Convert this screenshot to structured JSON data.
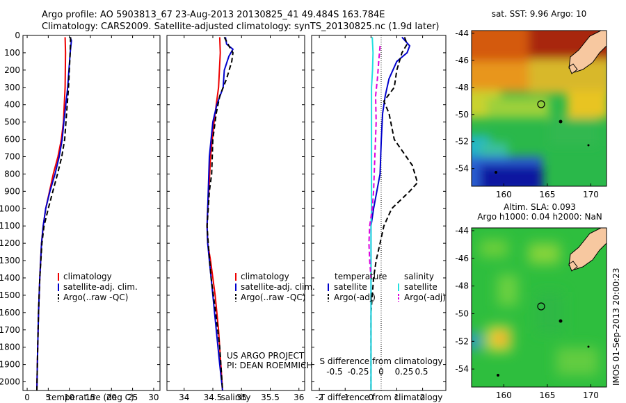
{
  "header": {
    "line1": "Argo profile: AO 5903813_67 23-Aug-2013 20130825_41 49.484S 163.784E",
    "line2": "Climatology: CARS2009. Satellite-adjusted climatology: synTS_20130825.nc (1.9d later)"
  },
  "credit": {
    "line1": "US ARGO PROJECT",
    "line2": "PI: DEAN ROEMMICH"
  },
  "footer_stamp": "IMOS 01-Sep-2013 20:00:23",
  "colors": {
    "climatology": "#ee0000",
    "satellite": "#0000cc",
    "argo": "#000000",
    "sat_diff_salinity": "#22e0e0",
    "argo_diff_salinity": "#dd00dd",
    "land": "#f7c8a0"
  },
  "chart_data": [
    {
      "type": "line",
      "name": "temperature-panel",
      "xlabel": "temperature (deg C)",
      "ylabel": "",
      "xlim": [
        -1,
        31.5
      ],
      "ylim": [
        2050,
        0
      ],
      "x_ticks": [
        0,
        5,
        10,
        15,
        20,
        25,
        30
      ],
      "y_ticks": [
        0,
        100,
        200,
        300,
        400,
        500,
        600,
        700,
        800,
        900,
        1000,
        1100,
        1200,
        1300,
        1400,
        1500,
        1600,
        1700,
        1800,
        1900,
        2000
      ],
      "legend": [
        "climatology",
        "satellite-adj. clim.",
        "Argo(..raw -QC)"
      ],
      "series": [
        {
          "name": "climatology",
          "style": "solid",
          "color": "#ee0000",
          "depth": [
            10,
            100,
            300,
            500,
            600,
            700,
            800,
            900,
            1000,
            1100,
            1200,
            1400,
            1600,
            1800,
            2050
          ],
          "value": [
            9.0,
            9.1,
            9.0,
            8.6,
            8.1,
            7.3,
            6.2,
            5.3,
            4.4,
            3.8,
            3.4,
            3.0,
            2.7,
            2.5,
            2.3
          ]
        },
        {
          "name": "satellite-adj. clim.",
          "style": "solid",
          "color": "#0000cc",
          "depth": [
            10,
            30,
            100,
            300,
            500,
            600,
            700,
            800,
            900,
            1000,
            1100,
            1200,
            1400,
            1600,
            1800,
            2050
          ],
          "value": [
            10.2,
            10.5,
            10.2,
            9.6,
            8.7,
            8.3,
            7.6,
            6.6,
            5.4,
            4.4,
            3.8,
            3.4,
            3.0,
            2.7,
            2.5,
            2.3
          ]
        },
        {
          "name": "Argo(..raw -QC)",
          "style": "dashed",
          "color": "#000000",
          "depth": [
            10,
            100,
            300,
            500,
            600,
            700,
            800,
            900,
            1000,
            1100,
            1200,
            1400,
            1600,
            1800,
            2050
          ],
          "value": [
            10.3,
            10.2,
            9.8,
            9.2,
            8.9,
            8.2,
            7.2,
            6.1,
            5.0,
            4.0,
            3.5,
            3.0,
            2.7,
            2.5,
            2.3
          ]
        }
      ]
    },
    {
      "type": "line",
      "name": "salinity-panel",
      "xlabel": "salinity",
      "ylabel": "",
      "xlim": [
        33.7,
        36.1
      ],
      "ylim": [
        2050,
        0
      ],
      "x_ticks": [
        34,
        34.5,
        35,
        35.5,
        36
      ],
      "legend": [
        "climatology",
        "satellite-adj. clim.",
        "Argo(..raw -QC)"
      ],
      "series": [
        {
          "name": "climatology",
          "style": "solid",
          "color": "#ee0000",
          "depth": [
            10,
            100,
            300,
            400,
            500,
            700,
            900,
            1000,
            1100,
            1200,
            1300,
            1500,
            1700,
            1900,
            2050
          ],
          "value": [
            34.62,
            34.63,
            34.6,
            34.56,
            34.52,
            34.46,
            34.43,
            34.41,
            34.4,
            34.41,
            34.46,
            34.54,
            34.6,
            34.64,
            34.67
          ]
        },
        {
          "name": "satellite-adj. clim.",
          "style": "solid",
          "color": "#0000cc",
          "depth": [
            10,
            50,
            80,
            120,
            200,
            300,
            400,
            500,
            700,
            900,
            1000,
            1100,
            1200,
            1300,
            1500,
            1700,
            1900,
            2050
          ],
          "value": [
            34.72,
            34.74,
            34.85,
            34.78,
            34.7,
            34.68,
            34.57,
            34.5,
            34.44,
            34.42,
            34.41,
            34.4,
            34.41,
            34.44,
            34.5,
            34.56,
            34.62,
            34.67
          ]
        },
        {
          "name": "Argo(..raw -QC)",
          "style": "dashed",
          "color": "#000000",
          "depth": [
            10,
            60,
            100,
            150,
            250,
            350,
            450,
            600,
            800,
            900,
            1000,
            1100,
            1200,
            1400,
            1600,
            1800,
            2050
          ],
          "value": [
            34.7,
            34.78,
            34.85,
            34.83,
            34.74,
            34.62,
            34.56,
            34.5,
            34.48,
            34.44,
            34.42,
            34.4,
            34.42,
            34.47,
            34.55,
            34.62,
            34.67
          ]
        }
      ]
    },
    {
      "type": "line",
      "name": "difference-panel",
      "xlabel": "T difference from climatology",
      "x2label": "S difference from climatology",
      "xlim": [
        -2.3,
        2.9
      ],
      "ylim": [
        2050,
        0
      ],
      "x_ticks": [
        -2,
        -1,
        0,
        1,
        2
      ],
      "x2_ticks": [
        "-0.5",
        "-0.25",
        "0",
        "0.25",
        "0.5"
      ],
      "legend_groups": {
        "temperature": [
          "satellite",
          "Argo(-adj)"
        ],
        "salinity": [
          "satellite",
          "Argo(-adj)"
        ]
      },
      "series": [
        {
          "name": "temperature satellite",
          "style": "solid",
          "color": "#0000cc",
          "depth": [
            10,
            60,
            100,
            150,
            250,
            350,
            450,
            600,
            800,
            1000,
            1100,
            1200,
            1400,
            1600,
            1800,
            2050
          ],
          "value": [
            1.2,
            1.5,
            1.4,
            1.0,
            0.7,
            0.55,
            0.45,
            0.4,
            0.35,
            0.1,
            0.0,
            0.0,
            0.0,
            0.0,
            0.0,
            0.0
          ]
        },
        {
          "name": "temperature Argo(-adj)",
          "style": "dashed",
          "color": "#000000",
          "depth": [
            10,
            50,
            100,
            200,
            300,
            380,
            450,
            600,
            750,
            850,
            900,
            1000,
            1100,
            1200,
            1300,
            1400,
            1600,
            1800,
            2050
          ],
          "value": [
            1.3,
            1.4,
            1.2,
            1.0,
            0.9,
            0.5,
            0.7,
            0.9,
            1.6,
            1.8,
            1.5,
            0.8,
            0.5,
            0.35,
            0.2,
            0.1,
            0.0,
            0.0,
            0.0
          ]
        },
        {
          "name": "salinity satellite",
          "style": "solid",
          "color": "#22e0e0",
          "depth": [
            10,
            100,
            200,
            300,
            400,
            600,
            800,
            1000,
            1100,
            1200,
            1400,
            1600,
            1800,
            2050
          ],
          "value": [
            0.05,
            0.08,
            0.06,
            0.02,
            0.02,
            0.02,
            0.02,
            0.02,
            0.0,
            0.0,
            0.0,
            0.0,
            0.0,
            0.0
          ]
        },
        {
          "name": "salinity Argo(-adj)",
          "style": "dashed",
          "color": "#dd00dd",
          "depth": [
            60,
            150,
            250,
            350,
            500,
            700,
            900,
            1000,
            1100,
            1200,
            1300,
            1400
          ],
          "value": [
            0.35,
            0.3,
            0.25,
            0.18,
            0.2,
            0.15,
            0.1,
            0.05,
            -0.05,
            -0.08,
            -0.05,
            0.0
          ]
        }
      ]
    },
    {
      "type": "heatmap",
      "name": "sst-map",
      "title": "sat. SST: 9.96 Argo: 10",
      "x_ticks": [
        160,
        165,
        170
      ],
      "y_ticks": [
        -44,
        -46,
        -48,
        -50,
        -52,
        -54
      ],
      "xlim": [
        156.3,
        171.8
      ],
      "ylim": [
        -55.3,
        -43.8
      ],
      "profile_marker": {
        "lon": 163.784,
        "lat": -49.484
      }
    },
    {
      "type": "heatmap",
      "name": "sla-map",
      "title": "Altim. SLA: 0.093",
      "subtitle": "Argo h1000: 0.04 h2000: NaN",
      "x_ticks": [
        160,
        165,
        170
      ],
      "y_ticks": [
        -44,
        -46,
        -48,
        -50,
        -52,
        -54
      ],
      "xlim": [
        156.3,
        171.8
      ],
      "ylim": [
        -55.3,
        -43.8
      ],
      "profile_marker": {
        "lon": 163.784,
        "lat": -49.484
      }
    }
  ]
}
